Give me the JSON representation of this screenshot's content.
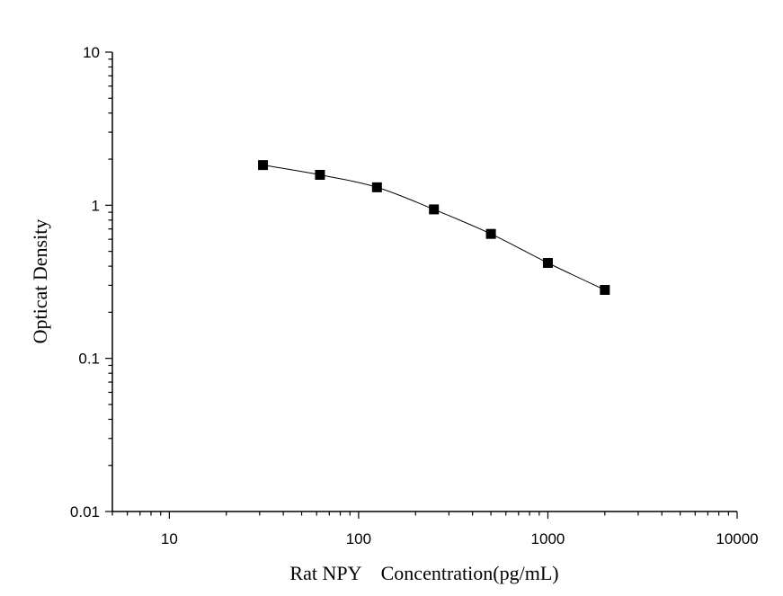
{
  "chart_data": {
    "type": "scatter",
    "title": "",
    "xlabel": "Rat NPY    Concentration(pg/mL)",
    "ylabel": "Opticat Density",
    "x_scale": "log",
    "y_scale": "log",
    "xlim": [
      5,
      10000
    ],
    "ylim": [
      0.01,
      10
    ],
    "x_ticks": [
      "10",
      "100",
      "1000",
      "10000"
    ],
    "y_ticks": [
      "0.01",
      "0.1",
      "1",
      "10"
    ],
    "grid": false,
    "legend": "none",
    "series": [
      {
        "x": [
          31.25,
          62.5,
          125,
          250,
          500,
          1000,
          2000
        ],
        "y": [
          1.83,
          1.58,
          1.31,
          0.94,
          0.65,
          0.42,
          0.28
        ],
        "marker": "square",
        "connected": true
      }
    ],
    "colors": {
      "marker": "#000000",
      "line": "#000000"
    }
  }
}
